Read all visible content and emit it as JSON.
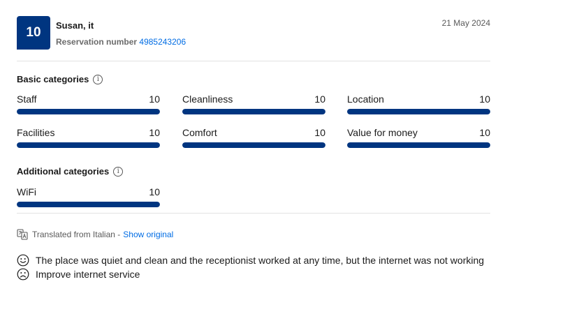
{
  "review": {
    "score": "10",
    "reviewer_name": "Susan, it",
    "reservation_label": "Reservation number",
    "reservation_number": "4985243206",
    "date": "21 May 2024"
  },
  "basic_categories": {
    "title": "Basic categories",
    "items": [
      {
        "label": "Staff",
        "score": "10",
        "fill_fraction": 1.0
      },
      {
        "label": "Cleanliness",
        "score": "10",
        "fill_fraction": 1.0
      },
      {
        "label": "Location",
        "score": "10",
        "fill_fraction": 1.0
      },
      {
        "label": "Facilities",
        "score": "10",
        "fill_fraction": 1.0
      },
      {
        "label": "Comfort",
        "score": "10",
        "fill_fraction": 1.0
      },
      {
        "label": "Value for money",
        "score": "10",
        "fill_fraction": 1.0
      }
    ]
  },
  "additional_categories": {
    "title": "Additional categories",
    "items": [
      {
        "label": "WiFi",
        "score": "10",
        "fill_fraction": 1.0
      }
    ]
  },
  "translation": {
    "text": "Translated from Italian -",
    "link": "Show original"
  },
  "comments": {
    "positive": "The place was quiet and clean and the receptionist worked at any time, but the internet was not working",
    "negative": "Improve internet service"
  },
  "colors": {
    "brand_blue": "#003580",
    "link_blue": "#006ce4",
    "bar_bg": "#e7e7e7"
  }
}
